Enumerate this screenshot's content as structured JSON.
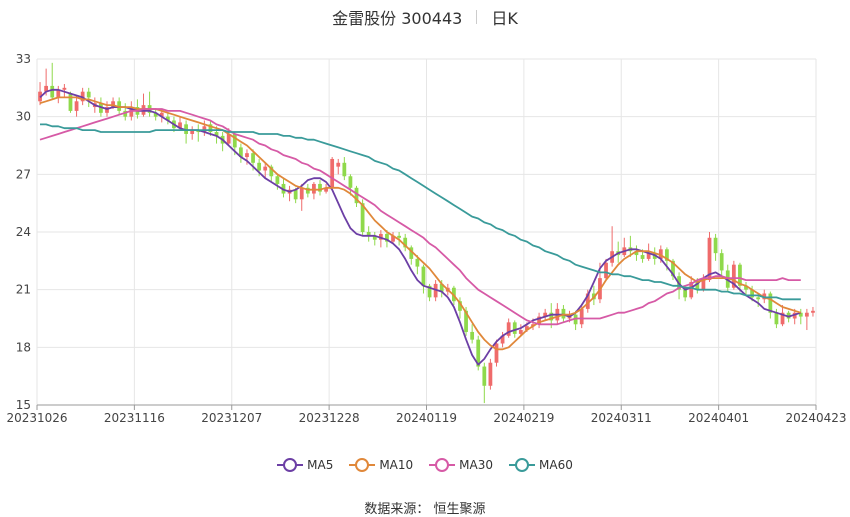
{
  "header": {
    "stock_title": "金雷股份 300443",
    "period_label": "日K"
  },
  "source_label": "数据来源：  恒生聚源",
  "colors": {
    "up": "#ef6b6b",
    "down": "#8fd94b",
    "ma5": "#6c3fa5",
    "ma10": "#e0883a",
    "ma30": "#d65aa6",
    "ma60": "#3a9b9a",
    "grid": "#e6e6e6"
  },
  "chart_data": {
    "type": "candlestick",
    "title": "金雷股份 300443",
    "subtitle": "日K",
    "ylim": [
      15,
      33
    ],
    "y_ticks": [
      "33",
      "30",
      "27",
      "24",
      "21",
      "18",
      "15"
    ],
    "x_tick_labels": [
      "20231026",
      "20231116",
      "20231207",
      "20231228",
      "20240119",
      "20240219",
      "20240311",
      "20240401",
      "20240423"
    ],
    "legend": [
      "MA5",
      "MA10",
      "MA30",
      "MA60"
    ],
    "candles": [
      [
        30.8,
        31.3,
        31.8,
        30.6
      ],
      [
        31.3,
        31.6,
        32.5,
        31.1
      ],
      [
        31.6,
        31.0,
        32.8,
        30.9
      ],
      [
        31.0,
        31.4,
        31.6,
        30.7
      ],
      [
        31.4,
        31.5,
        31.7,
        31.0
      ],
      [
        31.2,
        30.3,
        31.3,
        30.2
      ],
      [
        30.3,
        30.8,
        31.1,
        30.0
      ],
      [
        30.8,
        31.3,
        31.5,
        30.6
      ],
      [
        31.3,
        31.0,
        31.5,
        30.5
      ],
      [
        30.5,
        30.7,
        31.0,
        30.2
      ],
      [
        30.7,
        30.2,
        31.0,
        30.0
      ],
      [
        30.2,
        30.5,
        30.8,
        30.0
      ],
      [
        30.5,
        30.8,
        31.0,
        30.4
      ],
      [
        30.8,
        30.3,
        31.0,
        30.1
      ],
      [
        30.3,
        30.0,
        30.7,
        29.8
      ],
      [
        30.0,
        30.5,
        30.8,
        29.8
      ],
      [
        30.5,
        30.1,
        30.9,
        29.9
      ],
      [
        30.1,
        30.6,
        31.2,
        30.0
      ],
      [
        30.6,
        30.2,
        31.3,
        30.0
      ],
      [
        30.2,
        30.0,
        30.4,
        29.8
      ],
      [
        30.0,
        30.2,
        30.4,
        29.7
      ],
      [
        30.0,
        29.8,
        30.2,
        29.6
      ],
      [
        29.8,
        29.4,
        30.0,
        29.2
      ],
      [
        29.4,
        29.7,
        30.0,
        29.3
      ],
      [
        29.6,
        29.1,
        29.8,
        28.6
      ],
      [
        29.1,
        29.3,
        29.5,
        28.8
      ],
      [
        29.3,
        29.2,
        29.6,
        28.7
      ],
      [
        29.2,
        29.5,
        29.8,
        29.0
      ],
      [
        29.6,
        29.2,
        29.8,
        29.0
      ],
      [
        29.2,
        29.0,
        29.5,
        28.6
      ],
      [
        29.0,
        28.6,
        29.2,
        28.2
      ],
      [
        28.6,
        29.1,
        29.4,
        28.5
      ],
      [
        29.1,
        28.4,
        29.2,
        28.0
      ],
      [
        28.4,
        27.9,
        28.6,
        27.6
      ],
      [
        27.9,
        28.1,
        28.3,
        27.5
      ],
      [
        28.1,
        27.6,
        28.3,
        27.2
      ],
      [
        27.6,
        27.2,
        27.8,
        26.9
      ],
      [
        27.2,
        27.4,
        27.6,
        26.8
      ],
      [
        27.4,
        26.9,
        27.5,
        26.6
      ],
      [
        26.9,
        26.5,
        27.0,
        26.2
      ],
      [
        26.5,
        26.0,
        26.8,
        25.8
      ],
      [
        26.0,
        26.2,
        26.4,
        25.6
      ],
      [
        26.2,
        25.7,
        26.3,
        25.5
      ],
      [
        25.7,
        26.3,
        26.5,
        25.1
      ],
      [
        26.3,
        26.0,
        26.5,
        25.8
      ],
      [
        26.0,
        26.5,
        26.6,
        25.7
      ],
      [
        26.5,
        26.1,
        26.7,
        25.9
      ],
      [
        26.1,
        26.3,
        26.5,
        26.0
      ],
      [
        26.3,
        27.8,
        27.9,
        26.2
      ],
      [
        27.4,
        27.6,
        27.8,
        27.0
      ],
      [
        27.6,
        26.9,
        27.9,
        26.7
      ],
      [
        26.9,
        26.3,
        27.0,
        25.9
      ],
      [
        26.3,
        25.5,
        26.4,
        25.3
      ],
      [
        25.5,
        24.0,
        25.7,
        23.8
      ],
      [
        24.0,
        23.8,
        24.3,
        23.5
      ],
      [
        23.8,
        23.6,
        24.0,
        23.3
      ],
      [
        23.6,
        23.9,
        24.1,
        23.2
      ],
      [
        23.9,
        23.5,
        24.1,
        23.2
      ],
      [
        23.5,
        23.8,
        24.0,
        23.4
      ],
      [
        23.8,
        23.7,
        24.0,
        23.3
      ],
      [
        23.7,
        23.2,
        23.9,
        23.0
      ],
      [
        23.2,
        22.6,
        23.3,
        22.3
      ],
      [
        22.6,
        22.2,
        22.8,
        21.8
      ],
      [
        22.2,
        21.2,
        22.3,
        20.8
      ],
      [
        21.2,
        20.6,
        21.3,
        20.4
      ],
      [
        20.6,
        21.3,
        21.5,
        20.4
      ],
      [
        21.3,
        20.9,
        21.5,
        20.6
      ],
      [
        20.9,
        21.1,
        21.3,
        20.7
      ],
      [
        21.1,
        20.4,
        21.2,
        20.2
      ],
      [
        20.4,
        19.9,
        20.6,
        19.5
      ],
      [
        19.9,
        18.8,
        20.1,
        18.6
      ],
      [
        18.8,
        18.4,
        19.2,
        18.2
      ],
      [
        18.4,
        17.0,
        18.6,
        16.8
      ],
      [
        17.0,
        16.0,
        17.2,
        15.1
      ],
      [
        16.0,
        17.2,
        17.4,
        15.8
      ],
      [
        17.2,
        18.2,
        18.4,
        17.0
      ],
      [
        18.2,
        18.6,
        18.8,
        18.0
      ],
      [
        18.6,
        19.3,
        19.5,
        18.5
      ],
      [
        19.3,
        18.7,
        19.4,
        18.5
      ],
      [
        18.7,
        18.9,
        19.2,
        18.6
      ],
      [
        18.9,
        19.1,
        19.3,
        18.8
      ],
      [
        19.1,
        19.2,
        19.5,
        18.9
      ],
      [
        19.2,
        19.6,
        19.8,
        19.0
      ],
      [
        19.6,
        19.8,
        20.0,
        19.4
      ],
      [
        19.8,
        19.4,
        20.3,
        19.0
      ],
      [
        19.4,
        20.0,
        20.3,
        19.2
      ],
      [
        20.0,
        19.5,
        20.2,
        19.3
      ],
      [
        19.5,
        19.7,
        19.9,
        19.3
      ],
      [
        19.7,
        19.2,
        19.9,
        18.9
      ],
      [
        19.2,
        20.0,
        20.2,
        19.0
      ],
      [
        20.0,
        20.8,
        21.0,
        19.8
      ],
      [
        20.8,
        20.5,
        21.2,
        20.2
      ],
      [
        20.5,
        21.6,
        22.4,
        20.3
      ],
      [
        21.6,
        22.4,
        22.6,
        21.5
      ],
      [
        22.4,
        23.0,
        24.3,
        22.2
      ],
      [
        23.0,
        22.8,
        23.5,
        22.4
      ],
      [
        22.8,
        23.2,
        23.7,
        22.7
      ],
      [
        23.2,
        23.0,
        23.8,
        22.7
      ],
      [
        23.0,
        22.8,
        23.3,
        22.5
      ],
      [
        22.8,
        22.6,
        23.1,
        22.4
      ],
      [
        22.6,
        22.9,
        23.4,
        22.5
      ],
      [
        22.9,
        22.6,
        23.2,
        22.3
      ],
      [
        22.6,
        23.1,
        23.3,
        22.4
      ],
      [
        23.1,
        22.5,
        23.2,
        22.0
      ],
      [
        22.5,
        21.7,
        22.6,
        21.5
      ],
      [
        21.7,
        21.0,
        21.9,
        20.5
      ],
      [
        21.0,
        20.6,
        21.2,
        20.4
      ],
      [
        20.6,
        21.4,
        21.7,
        20.5
      ],
      [
        21.4,
        21.0,
        21.6,
        20.8
      ],
      [
        21.0,
        21.5,
        21.8,
        20.9
      ],
      [
        21.5,
        23.7,
        24.0,
        21.4
      ],
      [
        23.7,
        22.9,
        23.9,
        22.5
      ],
      [
        22.9,
        22.0,
        23.1,
        21.7
      ],
      [
        22.0,
        21.1,
        22.3,
        20.9
      ],
      [
        21.1,
        22.3,
        22.5,
        21.0
      ],
      [
        22.3,
        21.2,
        22.4,
        20.9
      ],
      [
        21.2,
        21.0,
        21.4,
        20.7
      ],
      [
        21.0,
        20.6,
        21.2,
        20.4
      ],
      [
        20.6,
        20.5,
        20.8,
        20.1
      ],
      [
        20.5,
        20.8,
        21.0,
        20.3
      ],
      [
        20.8,
        19.8,
        20.9,
        19.5
      ],
      [
        19.8,
        19.2,
        20.0,
        19.0
      ],
      [
        19.2,
        19.8,
        20.2,
        19.1
      ],
      [
        19.8,
        19.5,
        19.9,
        19.3
      ],
      [
        19.5,
        19.8,
        20.0,
        19.2
      ],
      [
        19.8,
        19.6,
        20.0,
        19.2
      ],
      [
        19.6,
        19.8,
        20.0,
        18.9
      ],
      [
        19.8,
        19.9,
        20.1,
        19.6
      ]
    ],
    "series": [
      {
        "name": "MA5",
        "values": [
          31.0,
          31.3,
          31.4,
          31.4,
          31.3,
          31.2,
          31.1,
          31.0,
          30.8,
          30.6,
          30.5,
          30.4,
          30.5,
          30.5,
          30.5,
          30.4,
          30.3,
          30.3,
          30.3,
          30.2,
          30.0,
          29.8,
          29.6,
          29.4,
          29.3,
          29.3,
          29.3,
          29.2,
          29.1,
          29.0,
          28.8,
          28.5,
          28.2,
          27.9,
          27.7,
          27.4,
          27.1,
          26.8,
          26.6,
          26.4,
          26.2,
          26.1,
          26.2,
          26.4,
          26.7,
          26.8,
          26.8,
          26.6,
          26.2,
          25.5,
          24.8,
          24.2,
          23.9,
          23.8,
          23.8,
          23.8,
          23.7,
          23.6,
          23.4,
          23.1,
          22.6,
          22.0,
          21.5,
          21.2,
          21.1,
          21.0,
          20.9,
          20.6,
          20.1,
          19.3,
          18.4,
          17.6,
          17.1,
          17.4,
          17.9,
          18.3,
          18.6,
          18.8,
          18.9,
          19.0,
          19.2,
          19.4,
          19.5,
          19.6,
          19.7,
          19.7,
          19.7,
          19.6,
          19.8,
          20.2,
          20.7,
          21.4,
          22.1,
          22.5,
          22.7,
          22.9,
          23.0,
          23.1,
          23.1,
          23.0,
          22.9,
          22.8,
          22.6,
          22.2,
          21.8,
          21.3,
          21.0,
          21.1,
          21.3,
          21.6,
          21.8,
          21.9,
          21.7,
          21.5,
          21.3,
          21.0,
          20.7,
          20.5,
          20.3,
          20.0,
          19.9,
          19.8,
          19.7,
          19.6,
          19.7,
          19.8
        ]
      },
      {
        "name": "MA10",
        "values": [
          30.7,
          30.8,
          30.9,
          31.0,
          31.0,
          31.0,
          31.0,
          30.9,
          30.9,
          30.8,
          30.7,
          30.6,
          30.6,
          30.5,
          30.5,
          30.5,
          30.4,
          30.4,
          30.4,
          30.4,
          30.3,
          30.2,
          30.1,
          30.0,
          29.9,
          29.8,
          29.7,
          29.6,
          29.5,
          29.4,
          29.3,
          29.1,
          28.9,
          28.7,
          28.5,
          28.2,
          27.9,
          27.6,
          27.3,
          27.0,
          26.8,
          26.6,
          26.4,
          26.3,
          26.2,
          26.2,
          26.2,
          26.3,
          26.3,
          26.3,
          26.2,
          26.0,
          25.7,
          25.4,
          25.0,
          24.6,
          24.3,
          24.0,
          23.8,
          23.6,
          23.3,
          23.0,
          22.7,
          22.4,
          22.1,
          21.7,
          21.3,
          21.0,
          20.7,
          20.3,
          19.8,
          19.3,
          18.8,
          18.4,
          18.1,
          17.9,
          17.9,
          18.0,
          18.3,
          18.6,
          18.9,
          19.1,
          19.3,
          19.4,
          19.5,
          19.6,
          19.7,
          19.7,
          19.8,
          20.0,
          20.3,
          20.6,
          21.0,
          21.5,
          21.9,
          22.3,
          22.6,
          22.8,
          23.0,
          23.0,
          23.0,
          22.9,
          22.8,
          22.6,
          22.4,
          22.1,
          21.8,
          21.6,
          21.4,
          21.5,
          21.6,
          21.6,
          21.6,
          21.6,
          21.5,
          21.3,
          21.2,
          21.0,
          20.8,
          20.6,
          20.5,
          20.3,
          20.1,
          20.0,
          19.9,
          19.8
        ]
      },
      {
        "name": "MA30",
        "values": [
          28.8,
          28.9,
          29.0,
          29.1,
          29.2,
          29.3,
          29.4,
          29.5,
          29.6,
          29.7,
          29.8,
          29.9,
          30.0,
          30.1,
          30.2,
          30.3,
          30.3,
          30.4,
          30.4,
          30.4,
          30.4,
          30.3,
          30.3,
          30.3,
          30.2,
          30.1,
          30.0,
          29.9,
          29.8,
          29.6,
          29.5,
          29.3,
          29.1,
          29.0,
          28.9,
          28.8,
          28.6,
          28.5,
          28.3,
          28.2,
          28.0,
          27.9,
          27.8,
          27.6,
          27.5,
          27.3,
          27.2,
          27.0,
          26.8,
          26.6,
          26.4,
          26.2,
          26.0,
          25.8,
          25.6,
          25.4,
          25.1,
          24.9,
          24.7,
          24.5,
          24.3,
          24.1,
          23.9,
          23.7,
          23.4,
          23.2,
          22.9,
          22.6,
          22.3,
          22.0,
          21.6,
          21.3,
          21.0,
          20.8,
          20.6,
          20.4,
          20.2,
          20.0,
          19.8,
          19.6,
          19.4,
          19.3,
          19.2,
          19.2,
          19.2,
          19.2,
          19.3,
          19.4,
          19.5,
          19.5,
          19.5,
          19.5,
          19.5,
          19.6,
          19.7,
          19.8,
          19.8,
          19.9,
          20.0,
          20.1,
          20.3,
          20.4,
          20.6,
          20.8,
          20.9,
          21.1,
          21.2,
          21.3,
          21.5,
          21.6,
          21.6,
          21.7,
          21.7,
          21.6,
          21.6,
          21.6,
          21.5,
          21.5,
          21.5,
          21.5,
          21.5,
          21.5,
          21.6,
          21.5,
          21.5,
          21.5
        ]
      },
      {
        "name": "MA60",
        "values": [
          29.6,
          29.6,
          29.5,
          29.5,
          29.4,
          29.4,
          29.4,
          29.3,
          29.3,
          29.3,
          29.2,
          29.2,
          29.2,
          29.2,
          29.2,
          29.2,
          29.2,
          29.2,
          29.2,
          29.3,
          29.3,
          29.3,
          29.3,
          29.3,
          29.3,
          29.3,
          29.3,
          29.3,
          29.3,
          29.3,
          29.3,
          29.2,
          29.2,
          29.2,
          29.2,
          29.2,
          29.1,
          29.1,
          29.1,
          29.1,
          29.0,
          29.0,
          28.9,
          28.9,
          28.8,
          28.8,
          28.7,
          28.6,
          28.5,
          28.4,
          28.3,
          28.2,
          28.1,
          28.0,
          27.9,
          27.7,
          27.6,
          27.5,
          27.3,
          27.2,
          27.0,
          26.8,
          26.6,
          26.4,
          26.2,
          26.0,
          25.8,
          25.6,
          25.4,
          25.2,
          25.0,
          24.8,
          24.7,
          24.5,
          24.4,
          24.2,
          24.1,
          23.9,
          23.8,
          23.6,
          23.5,
          23.3,
          23.2,
          23.0,
          22.9,
          22.8,
          22.6,
          22.5,
          22.3,
          22.2,
          22.1,
          22.0,
          21.9,
          21.9,
          21.8,
          21.8,
          21.7,
          21.7,
          21.6,
          21.5,
          21.5,
          21.4,
          21.4,
          21.3,
          21.2,
          21.2,
          21.1,
          21.1,
          21.0,
          21.0,
          21.0,
          21.0,
          20.9,
          20.9,
          20.8,
          20.8,
          20.7,
          20.7,
          20.7,
          20.6,
          20.6,
          20.6,
          20.5,
          20.5,
          20.5,
          20.5
        ]
      }
    ]
  }
}
